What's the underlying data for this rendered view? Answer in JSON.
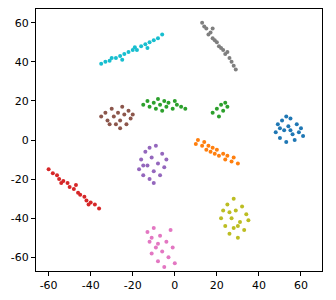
{
  "chart_data": {
    "type": "scatter",
    "marker": "circle",
    "grid": false,
    "xlim": [
      -66,
      70
    ],
    "ylim": [
      -67,
      67
    ],
    "xticks": [
      -60,
      -40,
      -20,
      0,
      20,
      40,
      60
    ],
    "yticks": [
      -60,
      -40,
      -20,
      0,
      20,
      40,
      60
    ],
    "series": [
      {
        "color": "#17becf",
        "x": [
          -35,
          -33,
          -31,
          -30,
          -28,
          -26,
          -24,
          -22,
          -20,
          -18,
          -16,
          -14,
          -12,
          -10,
          -8,
          -6,
          -25,
          -19,
          -13
        ],
        "values": [
          39,
          40,
          40.5,
          42,
          42,
          43,
          44,
          45,
          46,
          46,
          48,
          49,
          50,
          51,
          52,
          54,
          41,
          47.5,
          47
        ]
      },
      {
        "color": "#7f7f7f",
        "x": [
          13,
          14,
          15,
          17,
          18,
          16,
          20,
          21,
          19,
          23,
          24,
          22,
          26,
          27,
          28,
          29,
          25,
          18
        ],
        "values": [
          60,
          58,
          57,
          55,
          52,
          54,
          50,
          48,
          51,
          46,
          44,
          47,
          42,
          40,
          38,
          36,
          45,
          57
        ]
      },
      {
        "color": "#8c564b",
        "x": [
          -35,
          -33,
          -32,
          -30,
          -29,
          -28,
          -27,
          -26,
          -25,
          -24,
          -23,
          -22,
          -21,
          -20,
          -31,
          -26
        ],
        "values": [
          12,
          14,
          10,
          16,
          12,
          8,
          14,
          10,
          17,
          13,
          8,
          15,
          11,
          13,
          8,
          6
        ]
      },
      {
        "color": "#2ca02c",
        "x": [
          -15,
          -13,
          -12,
          -10,
          -9,
          -8,
          -7,
          -6,
          -5,
          -4,
          -3,
          -1,
          1,
          3,
          5,
          0,
          18,
          20,
          21,
          22,
          23,
          24,
          25
        ],
        "values": [
          18,
          20,
          17,
          19,
          16,
          21,
          18,
          15,
          20,
          17,
          19,
          16,
          18,
          17,
          16,
          20,
          14,
          16,
          12,
          18,
          15,
          19,
          17
        ]
      },
      {
        "color": "#1f77b4",
        "x": [
          48,
          49,
          50,
          51,
          52,
          53,
          54,
          55,
          56,
          57,
          58,
          59,
          60,
          61,
          55,
          50,
          53
        ],
        "values": [
          4,
          8,
          1,
          10,
          5,
          -1,
          7,
          11,
          3,
          0,
          8,
          4,
          6,
          2,
          5,
          6,
          12
        ]
      },
      {
        "color": "#ff7f0e",
        "x": [
          10,
          11,
          13,
          14,
          15,
          16,
          18,
          19,
          20,
          21,
          23,
          24,
          25,
          27,
          28,
          30,
          17
        ],
        "values": [
          -2,
          0,
          -3,
          -1,
          -5,
          -3,
          -4,
          -7,
          -5,
          -8,
          -7,
          -10,
          -8,
          -11,
          -9,
          -12,
          -6
        ]
      },
      {
        "color": "#9467bd",
        "x": [
          -17,
          -16,
          -15,
          -14,
          -13,
          -12,
          -11,
          -10,
          -9,
          -8,
          -7,
          -6,
          -5,
          -4,
          -12,
          -10,
          -15
        ],
        "values": [
          -15,
          -10,
          -18,
          -6,
          -13,
          -20,
          -9,
          -16,
          -3,
          -12,
          -18,
          -7,
          -14,
          -10,
          -4,
          -22,
          -13
        ]
      },
      {
        "color": "#d62728",
        "x": [
          -60,
          -58,
          -56,
          -55,
          -53,
          -51,
          -50,
          -48,
          -46,
          -45,
          -43,
          -42,
          -40,
          -38,
          -36,
          -54,
          -47,
          -41
        ],
        "values": [
          -15,
          -17,
          -18,
          -20,
          -21,
          -22,
          -24,
          -25,
          -27,
          -28,
          -29,
          -31,
          -32,
          -33,
          -35,
          -22,
          -23,
          -33
        ]
      },
      {
        "color": "#bcbd22",
        "x": [
          22,
          23,
          24,
          25,
          26,
          27,
          28,
          28,
          29,
          30,
          31,
          32,
          33,
          34,
          35,
          26,
          30
        ],
        "values": [
          -40,
          -36,
          -44,
          -33,
          -48,
          -40,
          -30,
          -45,
          -36,
          -50,
          -42,
          -34,
          -46,
          -38,
          -41,
          -37,
          -44
        ]
      },
      {
        "color": "#e377c2",
        "x": [
          -13,
          -12,
          -11,
          -10,
          -9,
          -8,
          -7,
          -6,
          -5,
          -4,
          -3,
          -2,
          -1,
          0,
          -8,
          -11
        ],
        "values": [
          -47,
          -52,
          -58,
          -45,
          -55,
          -62,
          -49,
          -57,
          -65,
          -52,
          -60,
          -46,
          -55,
          -63,
          -53,
          -50
        ]
      }
    ]
  }
}
